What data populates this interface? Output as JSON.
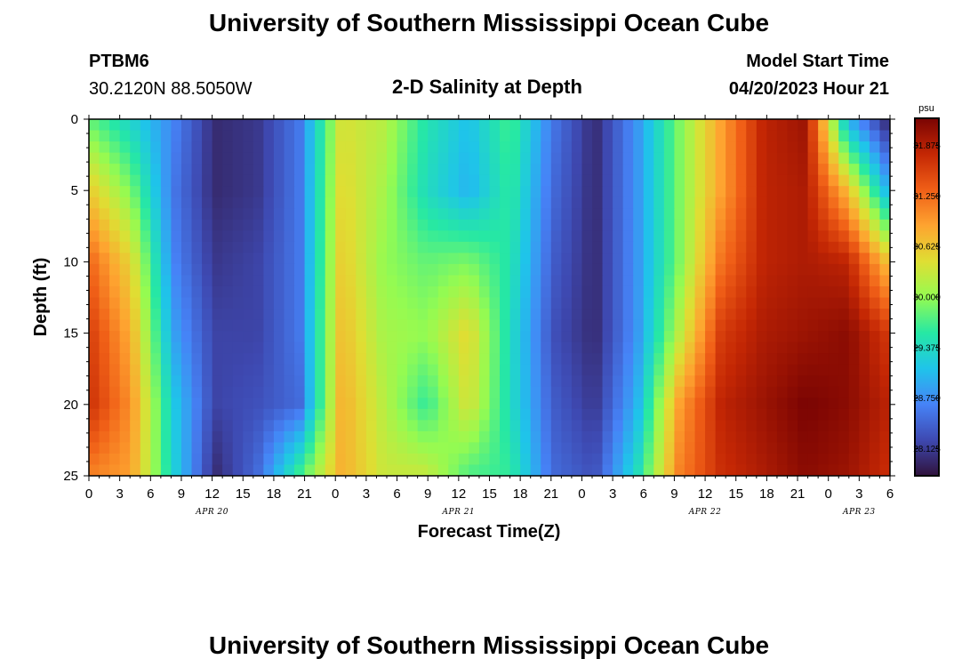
{
  "header": {
    "title": "University of Southern Mississippi Ocean Cube",
    "station_id": "PTBM6",
    "station_coords": "30.2120N  88.5050W",
    "chart_title": "2-D Salinity at Depth",
    "model_start_label": "Model Start Time",
    "model_start_value": "04/20/2023 Hour 21"
  },
  "footer": {
    "title": "University of Southern Mississippi Ocean Cube"
  },
  "chart_data": {
    "type": "heatmap",
    "title": "2-D Salinity at Depth",
    "xlabel": "Forecast Time(Z)",
    "ylabel": "Depth (ft)",
    "x_hours": [
      0,
      3,
      6,
      9,
      12,
      15,
      18,
      21,
      24,
      27,
      30,
      33,
      36,
      39,
      42,
      45,
      48,
      51,
      54,
      57,
      60,
      63,
      66,
      69,
      72,
      75,
      78
    ],
    "x_tick_labels": [
      "0",
      "3",
      "6",
      "9",
      "12",
      "15",
      "18",
      "21",
      "0",
      "3",
      "6",
      "9",
      "12",
      "15",
      "18",
      "21",
      "0",
      "3",
      "6",
      "9",
      "12",
      "15",
      "18",
      "21",
      "0",
      "3",
      "6"
    ],
    "x_range": [
      0,
      78
    ],
    "day_labels": [
      {
        "text": "APR 20",
        "hour": 12
      },
      {
        "text": "APR 21",
        "hour": 36
      },
      {
        "text": "APR 22",
        "hour": 60
      },
      {
        "text": "APR 23",
        "hour": 75
      }
    ],
    "y_ticks": [
      0,
      5,
      10,
      15,
      20,
      25
    ],
    "y_range": [
      0,
      25
    ],
    "y_reversed": true,
    "colorbar": {
      "unit": "psu",
      "min": 27.8,
      "max": 32.2,
      "ticks": [
        "31.875",
        "31.250",
        "30.625",
        "30.000",
        "29.375",
        "28.750",
        "28.125"
      ]
    },
    "depths_ft": [
      0,
      5,
      10,
      15,
      20,
      25
    ],
    "salinity_psu_by_depth": [
      [
        29.8,
        29.3,
        28.7,
        28.0,
        28.1,
        28.6,
        30.4,
        30.2,
        29.5,
        29.1,
        29.7,
        28.6,
        28.0,
        28.8,
        29.9,
        30.9,
        31.8,
        32.0,
        29.0,
        27.9
      ],
      [
        30.6,
        29.9,
        28.6,
        28.0,
        28.1,
        28.6,
        30.5,
        30.1,
        29.4,
        29.0,
        29.6,
        28.5,
        28.0,
        28.8,
        29.9,
        30.9,
        31.8,
        31.9,
        30.7,
        28.9
      ],
      [
        31.3,
        30.5,
        28.7,
        28.1,
        28.2,
        28.6,
        30.6,
        30.0,
        29.8,
        29.9,
        29.5,
        28.4,
        28.0,
        28.8,
        29.9,
        31.2,
        31.8,
        31.9,
        31.8,
        30.6
      ],
      [
        31.6,
        30.8,
        28.9,
        28.2,
        28.2,
        28.6,
        30.7,
        30.1,
        30.0,
        30.5,
        29.4,
        28.3,
        28.0,
        28.8,
        30.2,
        31.6,
        31.9,
        32.0,
        32.1,
        31.6
      ],
      [
        31.7,
        31.0,
        29.2,
        28.2,
        28.3,
        28.5,
        30.8,
        30.2,
        29.6,
        30.4,
        29.4,
        28.4,
        28.1,
        29.0,
        30.9,
        31.8,
        32.0,
        32.2,
        32.1,
        31.8
      ],
      [
        31.1,
        30.9,
        29.3,
        28.0,
        28.5,
        29.7,
        30.8,
        30.3,
        30.3,
        29.7,
        29.6,
        28.5,
        28.3,
        29.4,
        31.1,
        31.7,
        31.9,
        32.1,
        32.0,
        31.7
      ]
    ]
  }
}
